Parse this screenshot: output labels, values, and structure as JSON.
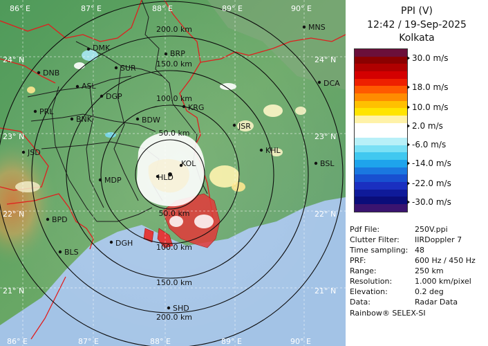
{
  "map": {
    "grid_labels": {
      "top": [
        "86° E",
        "87° E",
        "88° E",
        "89° E",
        "90° E"
      ],
      "bottom": [
        "86° E",
        "87° E",
        "88° E",
        "89° E",
        "90° E"
      ],
      "left": [
        "24° N",
        "23° N",
        "22° N",
        "21° N"
      ],
      "right": [
        "24° N",
        "23° N",
        "22° N",
        "21° N"
      ]
    },
    "range_labels": [
      "50.0 km",
      "100.0 km",
      "150.0 km",
      "200.0 km",
      "50.0 km",
      "100.0 km",
      "150.0 km",
      "200.0 km"
    ],
    "places": [
      "MNS",
      "DMK",
      "BRP",
      "DNB",
      "SUR",
      "ASL",
      "DGP",
      "DCA",
      "KRG",
      "PRL",
      "BNK",
      "BDW",
      "JSR",
      "KHL",
      "JSD",
      "MDP",
      "BSL",
      "BPD",
      "DGH",
      "BLS",
      "SHD",
      "KOL",
      "HLD"
    ]
  },
  "panel": {
    "product": "PPI (V)",
    "datetime": "12:42 / 19-Sep-2025",
    "station": "Kolkata",
    "legend_labels": [
      "30.0 m/s",
      "18.0 m/s",
      "10.0 m/s",
      "2.0 m/s",
      "-6.0 m/s",
      "-14.0 m/s",
      "-22.0 m/s",
      "-30.0 m/s"
    ],
    "legend_colors": [
      "#6b0f3a",
      "#8b0000",
      "#b00000",
      "#d40000",
      "#ee2000",
      "#ff5a00",
      "#ff8c00",
      "#ffc000",
      "#ffe400",
      "#fff2a8",
      "#ffffff",
      "#ffffff",
      "#b8f0f8",
      "#7ae0f5",
      "#40c8f0",
      "#1ea4ec",
      "#1a78e0",
      "#1850d0",
      "#1a2fc0",
      "#0f1a9a",
      "#0a0d7a",
      "#3a1470"
    ],
    "info": [
      {
        "k": "Pdf File:",
        "v": "250V.ppi"
      },
      {
        "k": "Clutter Filter:",
        "v": "IIRDoppler 7"
      },
      {
        "k": "Time sampling:",
        "v": "48"
      },
      {
        "k": "PRF:",
        "v": "600 Hz / 450 Hz"
      },
      {
        "k": "Range:",
        "v": "250 km"
      },
      {
        "k": "Resolution:",
        "v": "1.000 km/pixel"
      },
      {
        "k": "Elevation:",
        "v": "0.2 deg"
      },
      {
        "k": "Data:",
        "v": "Radar Data"
      }
    ],
    "footer": "Rainbow® SELEX-SI"
  }
}
